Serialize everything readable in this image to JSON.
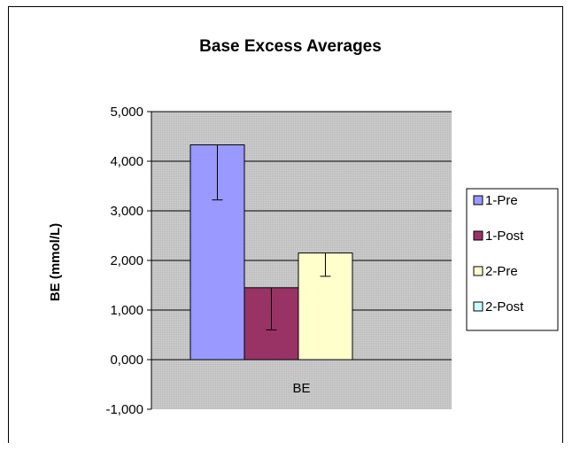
{
  "chart_data": {
    "type": "bar",
    "title": "Base Excess Averages",
    "xlabel": "",
    "ylabel": "BE (mmol/L)",
    "categories": [
      "BE"
    ],
    "ylim": [
      -1,
      5
    ],
    "yticks": [
      5,
      4,
      3,
      2,
      1,
      0,
      -1
    ],
    "ytick_labels": [
      "5,000",
      "4,000",
      "3,000",
      "2,000",
      "1,000",
      "0,000",
      "-1,000"
    ],
    "grid": true,
    "legend_position": "right",
    "series": [
      {
        "name": "1-Pre",
        "values": [
          4.33
        ],
        "error_low": [
          3.22
        ],
        "error_high": [
          4.33
        ],
        "color": "#9999ff"
      },
      {
        "name": "1-Post",
        "values": [
          1.45
        ],
        "error_low": [
          0.6
        ],
        "error_high": [
          1.45
        ],
        "color": "#993366"
      },
      {
        "name": "2-Pre",
        "values": [
          2.15
        ],
        "error_low": [
          1.68
        ],
        "error_high": [
          2.15
        ],
        "color": "#ffffcc"
      },
      {
        "name": "2-Post",
        "values": [
          0
        ],
        "error_low": [
          0
        ],
        "error_high": [
          0
        ],
        "color": "#ccffff"
      }
    ],
    "plot_background": "#c0c0c0"
  }
}
